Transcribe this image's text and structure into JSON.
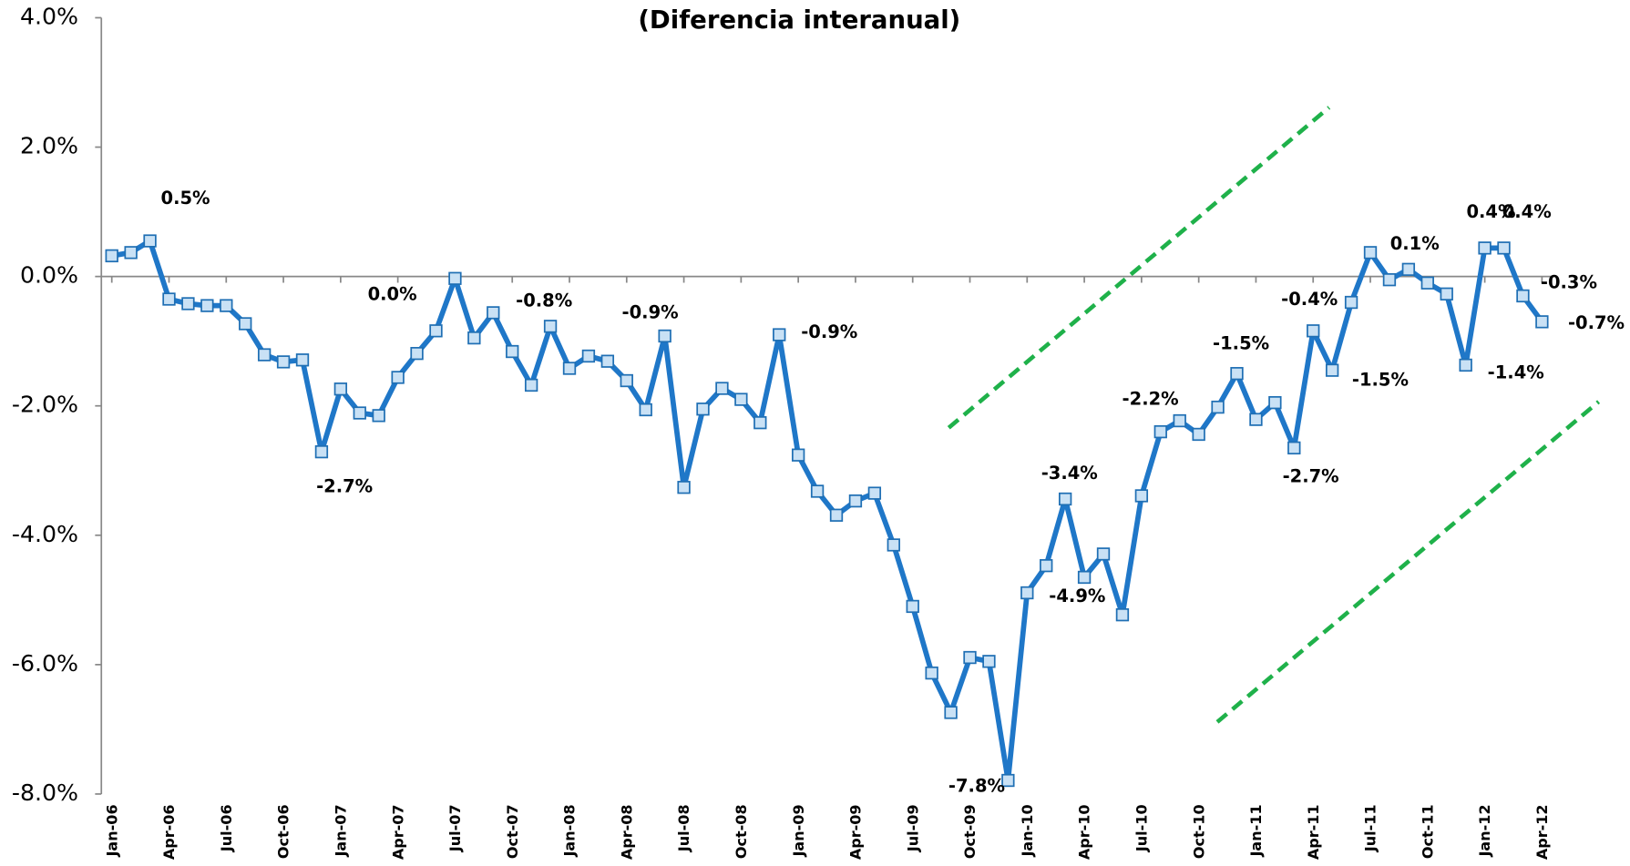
{
  "chart_data": {
    "type": "line",
    "title": "(Diferencia interanual)",
    "categories": [
      "Jan-06",
      null,
      null,
      "Apr-06",
      null,
      null,
      "Jul-06",
      null,
      null,
      "Oct-06",
      null,
      null,
      "Jan-07",
      null,
      null,
      "Apr-07",
      null,
      null,
      "Jul-07",
      null,
      null,
      "Oct-07",
      null,
      null,
      "Jan-08",
      null,
      null,
      "Apr-08",
      null,
      null,
      "Jul-08",
      null,
      null,
      "Oct-08",
      null,
      null,
      "Jan-09",
      null,
      null,
      "Apr-09",
      null,
      null,
      "Jul-09",
      null,
      null,
      "Oct-09",
      null,
      null,
      "Jan-10",
      null,
      null,
      "Apr-10",
      null,
      null,
      "Jul-10",
      null,
      null,
      "Oct-10",
      null,
      null,
      "Jan-11",
      null,
      null,
      "Apr-11",
      null,
      null,
      "Jul-11",
      null,
      null,
      "Oct-11",
      null,
      null,
      "Jan-12",
      null,
      null,
      "Apr-12"
    ],
    "series": [
      {
        "color": "#1f77c8",
        "values": [
          0.32,
          0.37,
          0.55,
          -0.35,
          -0.42,
          -0.45,
          -0.45,
          -0.73,
          -1.21,
          -1.32,
          -1.29,
          -2.71,
          -1.74,
          -2.11,
          -2.15,
          -1.56,
          -1.19,
          -0.84,
          -0.03,
          -0.95,
          -0.56,
          -1.16,
          -1.68,
          -0.77,
          -1.42,
          -1.23,
          -1.31,
          -1.61,
          -2.06,
          -0.92,
          -3.26,
          -2.05,
          -1.73,
          -1.9,
          -2.26,
          -0.9,
          -2.76,
          -3.32,
          -3.69,
          -3.47,
          -3.35,
          -4.15,
          -5.1,
          -6.13,
          -6.74,
          -5.89,
          -5.95,
          -7.79,
          -4.89,
          -4.47,
          -3.44,
          -4.65,
          -4.29,
          -5.23,
          -3.39,
          -2.4,
          -2.23,
          -2.44,
          -2.02,
          -1.5,
          -2.21,
          -1.95,
          -2.65,
          -0.84,
          -1.45,
          -0.4,
          0.37,
          -0.05,
          0.11,
          -0.1,
          -0.27,
          -1.37,
          0.44,
          0.44,
          -0.3,
          -0.7
        ],
        "value_labels": [
          null,
          null,
          "0.5%",
          null,
          null,
          null,
          null,
          null,
          null,
          null,
          null,
          "-2.7%",
          null,
          null,
          null,
          null,
          null,
          null,
          "0.0%",
          null,
          null,
          null,
          null,
          "-0.8%",
          null,
          null,
          null,
          null,
          null,
          "-0.9%",
          null,
          null,
          null,
          null,
          null,
          "-0.9%",
          null,
          null,
          null,
          null,
          null,
          null,
          null,
          null,
          null,
          null,
          null,
          "-7.8%",
          "-4.9%",
          null,
          "-3.4%",
          null,
          null,
          null,
          null,
          null,
          "-2.2%",
          null,
          null,
          "-1.5%",
          null,
          null,
          "-2.7%",
          null,
          "-1.5%",
          "-0.4%",
          null,
          null,
          "0.1%",
          null,
          null,
          "-1.4%",
          "0.4%",
          "0.4%",
          "-0.3%",
          "-0.7%"
        ]
      }
    ],
    "ylim": [
      -8,
      4
    ],
    "yticks": [
      {
        "value": -8,
        "label": "-8.0%"
      },
      {
        "value": -6,
        "label": "-6.0%"
      },
      {
        "value": -4,
        "label": "-4.0%"
      },
      {
        "value": -2,
        "label": "-2.0%"
      },
      {
        "value": 0,
        "label": "0.0%"
      },
      {
        "value": 2,
        "label": "2.0%"
      },
      {
        "value": 4,
        "label": "4.0%"
      }
    ]
  }
}
